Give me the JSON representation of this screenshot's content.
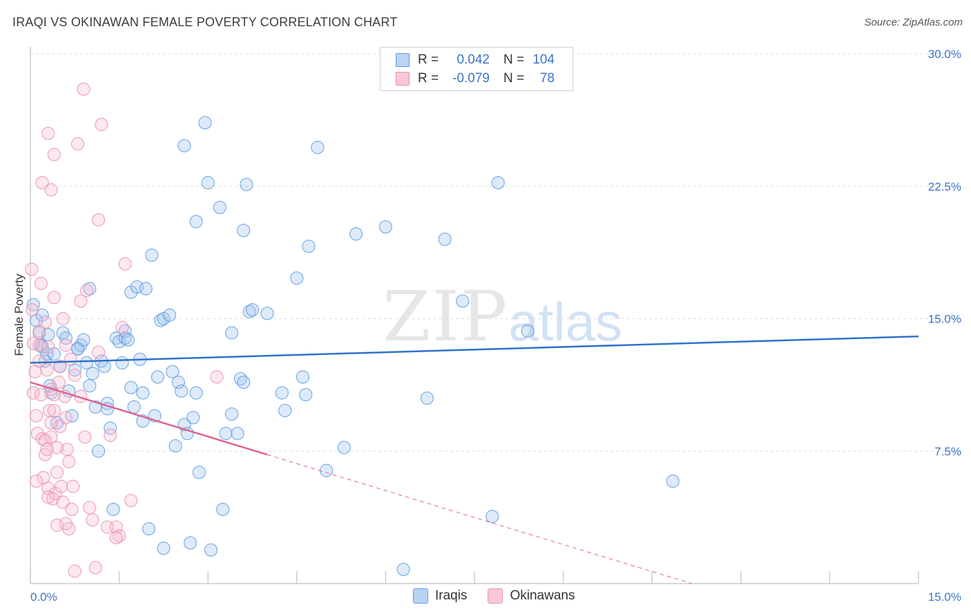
{
  "header": {
    "title": "IRAQI VS OKINAWAN FEMALE POVERTY CORRELATION CHART",
    "source": "Source: ZipAtlas.com"
  },
  "watermark": {
    "zip": "ZIP",
    "atlas": "atlas"
  },
  "legend": {
    "rows": [
      {
        "r_label": "R =",
        "r_value": "0.042",
        "n_label": "N =",
        "n_value": "104",
        "color": "#5b9be0",
        "fill": "#b9d3f3"
      },
      {
        "r_label": "R =",
        "r_value": "-0.079",
        "n_label": "N =",
        "n_value": "78",
        "color": "#e890b0",
        "fill": "#f8c8d8"
      }
    ]
  },
  "bottom_legend": {
    "iraqis": "Iraqis",
    "okinawans": "Okinawans"
  },
  "colors": {
    "iraqis_stroke": "#5b9be0",
    "iraqis_fill": "rgba(160,196,238,0.35)",
    "okinawans_stroke": "#e890b0",
    "okinawans_fill": "rgba(246,190,210,0.35)",
    "blue_line": "#2f72c9",
    "pink_line": "#e0628f",
    "grid": "#dddddd",
    "tick_text": "#3a74c9"
  },
  "chart_data": {
    "type": "scatter",
    "title": "IRAQI VS OKINAWAN FEMALE POVERTY CORRELATION CHART",
    "xlabel": "",
    "ylabel": "Female Poverty",
    "xlim": [
      0,
      15
    ],
    "ylim": [
      0,
      30
    ],
    "x_tick_labels": [
      "0.0%",
      "15.0%"
    ],
    "y_ticks": [
      7.5,
      15.0,
      22.5,
      30.0
    ],
    "y_tick_labels": [
      "7.5%",
      "15.0%",
      "22.5%",
      "30.0%"
    ],
    "grid": "horizontal dashed",
    "legend_position": "top-center",
    "series": [
      {
        "name": "Iraqis",
        "trend": {
          "x0": 0,
          "y0": 12.5,
          "x1": 15,
          "y1": 14.0
        },
        "points": [
          [
            0.05,
            15.8
          ],
          [
            0.1,
            14.9
          ],
          [
            0.15,
            14.2
          ],
          [
            0.18,
            13.5
          ],
          [
            0.2,
            15.2
          ],
          [
            0.25,
            12.6
          ],
          [
            0.28,
            13.0
          ],
          [
            0.3,
            14.1
          ],
          [
            0.33,
            11.2
          ],
          [
            0.35,
            10.8
          ],
          [
            0.4,
            13.0
          ],
          [
            0.45,
            9.1
          ],
          [
            0.5,
            12.3
          ],
          [
            0.55,
            14.2
          ],
          [
            0.6,
            13.9
          ],
          [
            0.65,
            10.9
          ],
          [
            0.7,
            9.5
          ],
          [
            0.75,
            12.1
          ],
          [
            0.8,
            13.3
          ],
          [
            0.85,
            13.5
          ],
          [
            0.9,
            13.8
          ],
          [
            0.95,
            12.5
          ],
          [
            1.0,
            16.7
          ],
          [
            1.0,
            11.2
          ],
          [
            1.05,
            11.9
          ],
          [
            1.1,
            10.0
          ],
          [
            1.15,
            7.5
          ],
          [
            1.2,
            12.6
          ],
          [
            1.25,
            12.3
          ],
          [
            1.3,
            10.2
          ],
          [
            1.3,
            9.9
          ],
          [
            1.35,
            8.8
          ],
          [
            1.45,
            13.9
          ],
          [
            1.5,
            13.7
          ],
          [
            1.55,
            12.5
          ],
          [
            1.6,
            14.3
          ],
          [
            1.6,
            13.9
          ],
          [
            1.7,
            16.5
          ],
          [
            1.7,
            11.1
          ],
          [
            1.75,
            10.0
          ],
          [
            1.8,
            16.8
          ],
          [
            1.85,
            12.7
          ],
          [
            1.9,
            10.8
          ],
          [
            1.9,
            9.2
          ],
          [
            1.95,
            16.7
          ],
          [
            2.05,
            18.6
          ],
          [
            2.1,
            9.5
          ],
          [
            2.15,
            11.7
          ],
          [
            2.2,
            14.9
          ],
          [
            2.25,
            15.0
          ],
          [
            2.35,
            15.2
          ],
          [
            2.4,
            12.0
          ],
          [
            2.45,
            7.8
          ],
          [
            2.5,
            11.4
          ],
          [
            2.55,
            10.9
          ],
          [
            2.6,
            9.0
          ],
          [
            2.65,
            8.5
          ],
          [
            2.7,
            2.3
          ],
          [
            2.75,
            9.4
          ],
          [
            2.8,
            10.8
          ],
          [
            2.85,
            6.3
          ],
          [
            2.6,
            24.8
          ],
          [
            2.8,
            20.5
          ],
          [
            2.95,
            26.1
          ],
          [
            3.0,
            22.7
          ],
          [
            3.05,
            1.9
          ],
          [
            3.2,
            21.3
          ],
          [
            3.25,
            4.2
          ],
          [
            3.3,
            8.5
          ],
          [
            3.4,
            14.2
          ],
          [
            3.5,
            8.5
          ],
          [
            3.55,
            11.6
          ],
          [
            3.6,
            20.0
          ],
          [
            3.6,
            11.4
          ],
          [
            3.65,
            22.6
          ],
          [
            3.7,
            15.4
          ],
          [
            3.75,
            15.5
          ],
          [
            4.0,
            15.3
          ],
          [
            4.25,
            10.8
          ],
          [
            4.3,
            9.8
          ],
          [
            4.5,
            17.3
          ],
          [
            4.6,
            11.7
          ],
          [
            4.65,
            10.7
          ],
          [
            4.7,
            19.1
          ],
          [
            4.85,
            24.7
          ],
          [
            5.0,
            6.4
          ],
          [
            5.3,
            7.7
          ],
          [
            5.5,
            19.8
          ],
          [
            6.0,
            20.2
          ],
          [
            6.3,
            0.8
          ],
          [
            6.7,
            10.5
          ],
          [
            7.0,
            19.5
          ],
          [
            7.3,
            16.0
          ],
          [
            7.8,
            3.8
          ],
          [
            7.9,
            22.7
          ],
          [
            8.4,
            14.3
          ],
          [
            10.85,
            5.8
          ],
          [
            2.0,
            3.1
          ],
          [
            1.4,
            4.2
          ],
          [
            0.8,
            13.3
          ],
          [
            0.2,
            13.4
          ],
          [
            1.65,
            13.8
          ],
          [
            3.4,
            9.6
          ],
          [
            2.25,
            2.0
          ]
        ]
      },
      {
        "name": "Okinawans",
        "trend": {
          "x0": 0,
          "y0": 11.4,
          "x1": 4.0,
          "y1": 7.3,
          "dashed_to": [
            15,
            -3.9
          ]
        },
        "points": [
          [
            0.02,
            17.8
          ],
          [
            0.03,
            15.5
          ],
          [
            0.05,
            10.8
          ],
          [
            0.08,
            12.0
          ],
          [
            0.1,
            9.5
          ],
          [
            0.12,
            8.5
          ],
          [
            0.15,
            14.3
          ],
          [
            0.15,
            13.5
          ],
          [
            0.18,
            17.0
          ],
          [
            0.18,
            10.7
          ],
          [
            0.2,
            22.7
          ],
          [
            0.2,
            8.2
          ],
          [
            0.22,
            6.0
          ],
          [
            0.25,
            14.8
          ],
          [
            0.25,
            7.3
          ],
          [
            0.28,
            12.1
          ],
          [
            0.3,
            25.5
          ],
          [
            0.3,
            13.4
          ],
          [
            0.3,
            5.4
          ],
          [
            0.32,
            9.8
          ],
          [
            0.35,
            22.3
          ],
          [
            0.35,
            11.0
          ],
          [
            0.35,
            8.3
          ],
          [
            0.38,
            4.8
          ],
          [
            0.4,
            24.3
          ],
          [
            0.4,
            16.2
          ],
          [
            0.4,
            9.8
          ],
          [
            0.42,
            5.1
          ],
          [
            0.45,
            6.3
          ],
          [
            0.45,
            3.3
          ],
          [
            0.48,
            11.4
          ],
          [
            0.5,
            12.3
          ],
          [
            0.5,
            8.9
          ],
          [
            0.52,
            5.5
          ],
          [
            0.55,
            15.0
          ],
          [
            0.55,
            4.6
          ],
          [
            0.58,
            10.6
          ],
          [
            0.6,
            13.5
          ],
          [
            0.6,
            9.4
          ],
          [
            0.62,
            7.6
          ],
          [
            0.65,
            6.9
          ],
          [
            0.65,
            3.1
          ],
          [
            0.68,
            12.7
          ],
          [
            0.7,
            4.2
          ],
          [
            0.72,
            5.5
          ],
          [
            0.75,
            0.7
          ],
          [
            0.8,
            24.9
          ],
          [
            0.85,
            16.0
          ],
          [
            0.85,
            10.6
          ],
          [
            0.9,
            28.0
          ],
          [
            0.92,
            8.3
          ],
          [
            0.95,
            16.6
          ],
          [
            1.0,
            4.3
          ],
          [
            1.05,
            3.6
          ],
          [
            1.1,
            0.9
          ],
          [
            1.15,
            20.6
          ],
          [
            1.15,
            13.1
          ],
          [
            1.2,
            26.0
          ],
          [
            1.3,
            3.2
          ],
          [
            1.35,
            8.4
          ],
          [
            1.45,
            3.2
          ],
          [
            1.5,
            2.7
          ],
          [
            1.55,
            14.5
          ],
          [
            1.6,
            18.1
          ],
          [
            1.7,
            4.7
          ],
          [
            0.25,
            8.1
          ],
          [
            0.3,
            4.9
          ],
          [
            0.45,
            7.7
          ],
          [
            0.6,
            3.4
          ],
          [
            0.75,
            11.8
          ],
          [
            0.15,
            12.6
          ],
          [
            0.4,
            10.7
          ],
          [
            1.45,
            2.6
          ],
          [
            3.15,
            11.7
          ],
          [
            0.05,
            13.6
          ],
          [
            0.1,
            5.8
          ],
          [
            0.35,
            9.1
          ],
          [
            0.28,
            7.6
          ]
        ]
      }
    ]
  }
}
